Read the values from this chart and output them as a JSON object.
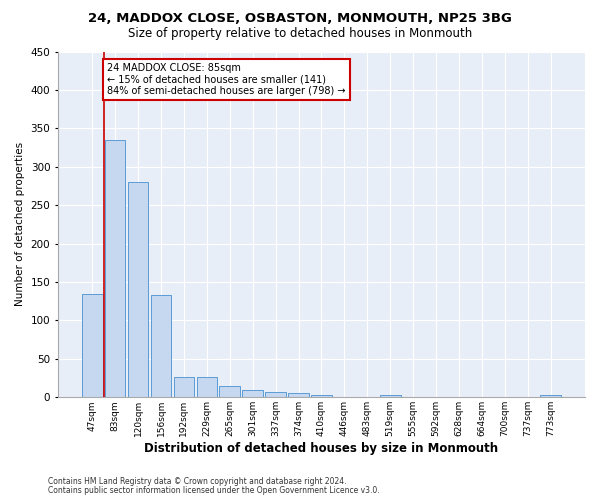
{
  "title1": "24, MADDOX CLOSE, OSBASTON, MONMOUTH, NP25 3BG",
  "title2": "Size of property relative to detached houses in Monmouth",
  "xlabel": "Distribution of detached houses by size in Monmouth",
  "ylabel": "Number of detached properties",
  "footer1": "Contains HM Land Registry data © Crown copyright and database right 2024.",
  "footer2": "Contains public sector information licensed under the Open Government Licence v3.0.",
  "annotation_line1": "24 MADDOX CLOSE: 85sqm",
  "annotation_line2": "← 15% of detached houses are smaller (141)",
  "annotation_line3": "84% of semi-detached houses are larger (798) →",
  "bar_categories": [
    "47sqm",
    "83sqm",
    "120sqm",
    "156sqm",
    "192sqm",
    "229sqm",
    "265sqm",
    "301sqm",
    "337sqm",
    "374sqm",
    "410sqm",
    "446sqm",
    "483sqm",
    "519sqm",
    "555sqm",
    "592sqm",
    "628sqm",
    "664sqm",
    "700sqm",
    "737sqm",
    "773sqm"
  ],
  "bar_values": [
    135,
    335,
    280,
    133,
    26,
    26,
    15,
    10,
    7,
    5,
    3,
    0,
    0,
    3,
    0,
    0,
    0,
    0,
    0,
    0,
    3
  ],
  "bar_color": "#c5d8f0",
  "bar_edge_color": "#5b9bd5",
  "marker_color": "#cc0000",
  "annotation_box_color": "#cc0000",
  "bg_color": "#e8eef7",
  "ylim": [
    0,
    450
  ],
  "yticks": [
    0,
    50,
    100,
    150,
    200,
    250,
    300,
    350,
    400,
    450
  ],
  "title1_fontsize": 9.5,
  "title2_fontsize": 8.5,
  "xlabel_fontsize": 8.5,
  "ylabel_fontsize": 7.5,
  "xtick_fontsize": 6.5,
  "ytick_fontsize": 7.5,
  "footer_fontsize": 5.5,
  "annot_fontsize": 7.0,
  "property_line_x": 0.5
}
